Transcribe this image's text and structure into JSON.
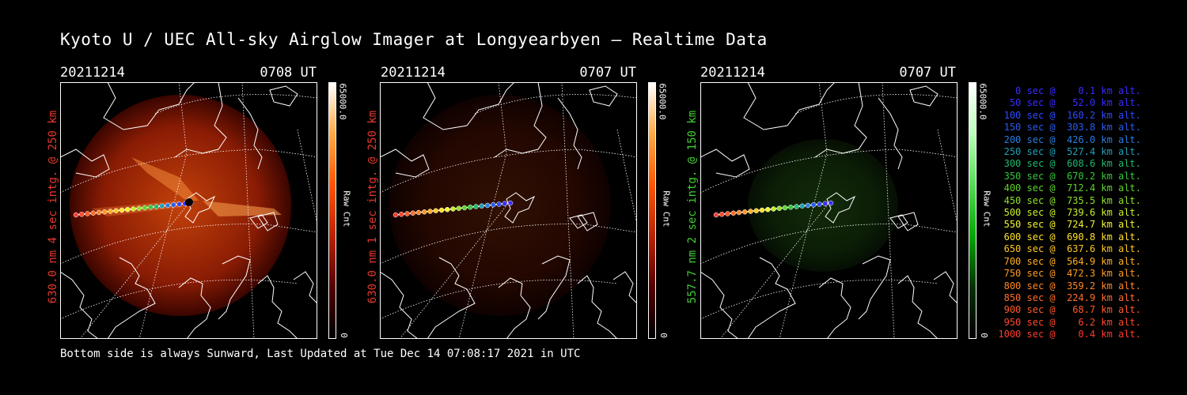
{
  "title": "Kyoto U / UEC All-sky Airglow Imager at Longyearbyen — Realtime Data",
  "footer": "Bottom side is always Sunward, Last Updated at Tue Dec 14 07:08:17 2021 in UTC",
  "panels": [
    {
      "date": "20211214",
      "time": "0708 UT",
      "ylabel": "630.0 nm 4 sec intg. @ 250 km",
      "label_color": "#e8382a",
      "cbar_max": "65000.0",
      "cbar_mid": "Raw Cnt",
      "cbar_min": "0",
      "palette": "red",
      "intensity": 1.0
    },
    {
      "date": "20211214",
      "time": "0707 UT",
      "ylabel": "630.0 nm 1 sec intg. @ 250 km",
      "label_color": "#e8382a",
      "cbar_max": "65000.0",
      "cbar_mid": "Raw Cnt",
      "cbar_min": "0",
      "palette": "red",
      "intensity": 0.25
    },
    {
      "date": "20211214",
      "time": "0707 UT",
      "ylabel": "557.7 nm 2 sec intg. @ 150 km",
      "label_color": "#3fcf2f",
      "cbar_max": "65000.0",
      "cbar_mid": "Raw Cnt",
      "cbar_min": "0",
      "palette": "green",
      "intensity": 0.4
    }
  ],
  "legend": [
    {
      "text": "   0 sec @    0.1 km alt.",
      "color": "#3a2cff"
    },
    {
      "text": "  50 sec @   52.0 km alt.",
      "color": "#3a2cff"
    },
    {
      "text": " 100 sec @  160.2 km alt.",
      "color": "#2c4bff"
    },
    {
      "text": " 150 sec @  303.8 km alt.",
      "color": "#2a5cf0"
    },
    {
      "text": " 200 sec @  426.0 km alt.",
      "color": "#2a7ee0"
    },
    {
      "text": " 250 sec @  527.4 km alt.",
      "color": "#1fa0b8"
    },
    {
      "text": " 300 sec @  608.6 km alt.",
      "color": "#20b870"
    },
    {
      "text": " 350 sec @  670.2 km alt.",
      "color": "#33c83a"
    },
    {
      "text": " 400 sec @  712.4 km alt.",
      "color": "#5ed42a"
    },
    {
      "text": " 450 sec @  735.5 km alt.",
      "color": "#8ee02a"
    },
    {
      "text": " 500 sec @  739.6 km alt.",
      "color": "#c8ef2c"
    },
    {
      "text": " 550 sec @  724.7 km alt.",
      "color": "#f2f52e"
    },
    {
      "text": " 600 sec @  690.8 km alt.",
      "color": "#ffe12a"
    },
    {
      "text": " 650 sec @  637.6 km alt.",
      "color": "#ffc820"
    },
    {
      "text": " 700 sec @  564.9 km alt.",
      "color": "#ffb020"
    },
    {
      "text": " 750 sec @  472.3 km alt.",
      "color": "#ff9a22"
    },
    {
      "text": " 800 sec @  359.2 km alt.",
      "color": "#ff8524"
    },
    {
      "text": " 850 sec @  224.9 km alt.",
      "color": "#ff6e28"
    },
    {
      "text": " 900 sec @   68.7 km alt.",
      "color": "#ff5a2a"
    },
    {
      "text": " 950 sec @    6.2 km alt.",
      "color": "#ff482c"
    },
    {
      "text": "1000 sec @    0.4 km alt.",
      "color": "#ff3a2e"
    }
  ]
}
